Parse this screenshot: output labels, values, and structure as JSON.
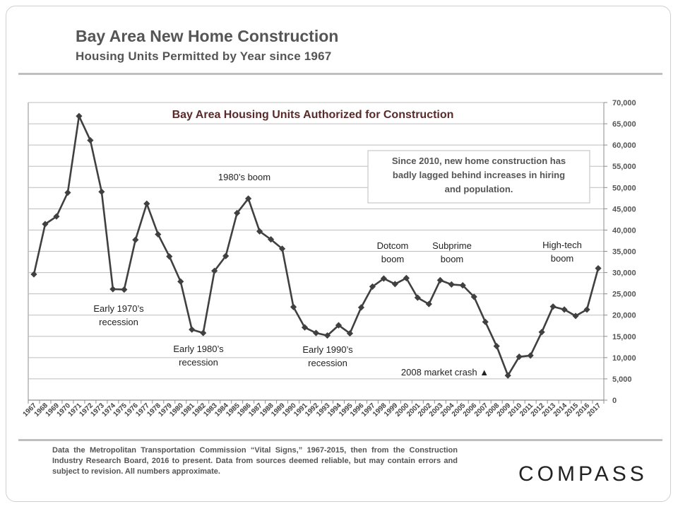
{
  "header": {
    "title": "Bay Area New Home Construction",
    "subtitle": "Housing  Units Permitted by Year since 1967"
  },
  "footer": {
    "source": "Data the Metropolitan Transportation Commission “Vital Signs,” 1967-2015, then from the Construction Industry Research Board, 2016 to present. Data from sources deemed reliable, but may contain errors and subject to revision. All numbers approximate.",
    "logo": "COMPASS"
  },
  "colors": {
    "line": "#404040",
    "title": "#5a2a2a",
    "text": "#555555"
  },
  "chart_data": {
    "type": "line",
    "title": "Bay Area Housing Units Authorized for Construction",
    "xlabel": "",
    "ylabel": "",
    "ylim": [
      0,
      70000
    ],
    "y_ticks": [
      "0",
      "5,000",
      "10,000",
      "15,000",
      "20,000",
      "25,000",
      "30,000",
      "35,000",
      "40,000",
      "45,000",
      "50,000",
      "55,000",
      "60,000",
      "65,000",
      "70,000"
    ],
    "categories": [
      "1967",
      "1968",
      "1969",
      "1970",
      "1971",
      "1972",
      "1973",
      "1974",
      "1975",
      "1976",
      "1977",
      "1978",
      "1979",
      "1980",
      "1981",
      "1982",
      "1983",
      "1984",
      "1985",
      "1986",
      "1987",
      "1988",
      "1989",
      "1990",
      "1991",
      "1992",
      "1993",
      "1994",
      "1995",
      "1996",
      "1997",
      "1998",
      "1999",
      "2000",
      "2001",
      "2002",
      "2003",
      "2004",
      "2005",
      "2006",
      "2007",
      "2008",
      "2009",
      "2010",
      "2011",
      "2012",
      "2013",
      "2014",
      "2015",
      "2016",
      "2017"
    ],
    "series": [
      {
        "name": "Housing Units Authorized",
        "values": [
          29600,
          41400,
          43200,
          48800,
          66800,
          61100,
          49000,
          26100,
          26000,
          37700,
          46200,
          39000,
          33800,
          27900,
          16600,
          15800,
          30400,
          33900,
          44000,
          47400,
          39700,
          37800,
          35600,
          21900,
          17100,
          15800,
          15200,
          17600,
          15700,
          21800,
          26700,
          28600,
          27300,
          28700,
          24100,
          22600,
          28200,
          27200,
          27000,
          24300,
          18400,
          12700,
          5800,
          10200,
          10500,
          16000,
          22000,
          21300,
          19800,
          21300,
          31000
        ]
      }
    ],
    "annotations": [
      {
        "id": "boom1980",
        "text": [
          "1980’s boom"
        ],
        "year": "1986"
      },
      {
        "id": "rec1970",
        "text": [
          "Early 1970’s",
          "recession"
        ],
        "year": "1974"
      },
      {
        "id": "rec1980",
        "text": [
          "Early 1980’s",
          "recession"
        ],
        "year": "1982"
      },
      {
        "id": "rec1990",
        "text": [
          "Early 1990’s",
          "recession"
        ],
        "year": "1993"
      },
      {
        "id": "dotcom",
        "text": [
          "Dotcom",
          "boom"
        ],
        "year": "1998"
      },
      {
        "id": "subprime",
        "text": [
          "Subprime",
          "boom"
        ],
        "year": "2004"
      },
      {
        "id": "hightech",
        "text": [
          "High-tech",
          "boom"
        ],
        "year": "2016"
      },
      {
        "id": "crash",
        "text": [
          "2008 market crash ▲"
        ],
        "year": "2009"
      }
    ],
    "callout": [
      "Since 2010, new home construction has",
      "badly lagged behind increases in hiring",
      "and population."
    ]
  }
}
